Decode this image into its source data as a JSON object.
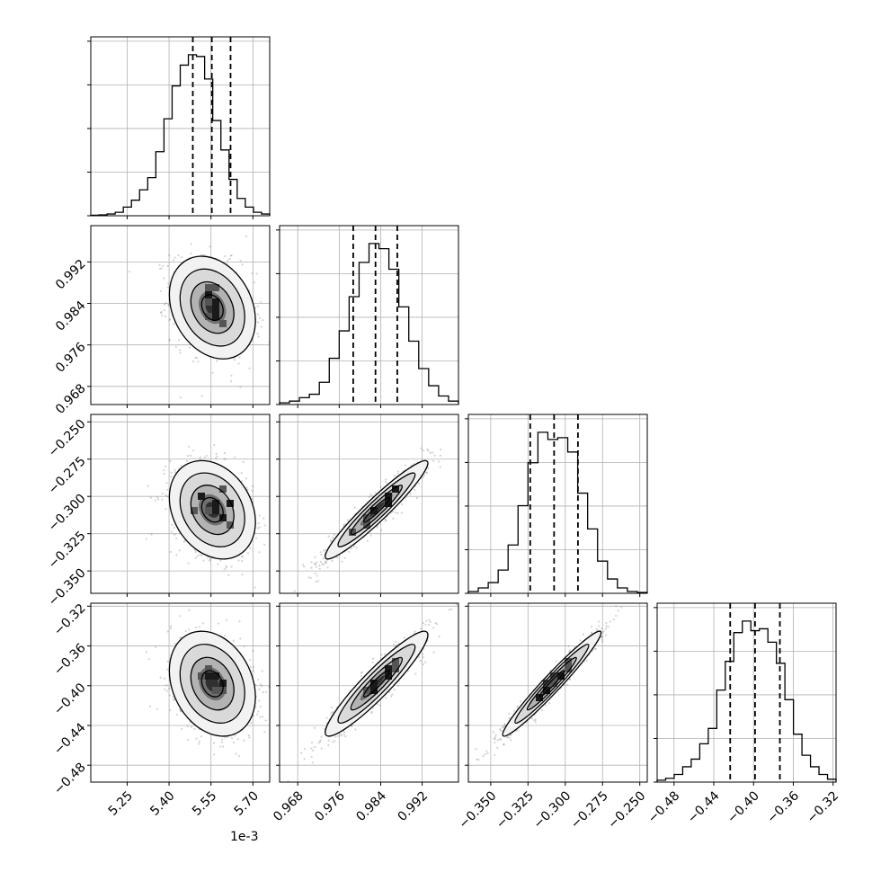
{
  "chart_data": {
    "type": "corner",
    "offset_text": "1e-3",
    "params": [
      {
        "id": "p0",
        "scale": 0.001,
        "range": [
          5.12,
          5.76
        ],
        "ticks": [
          5.25,
          5.4,
          5.55,
          5.7
        ],
        "tick_labels": [
          "5.25",
          "5.40",
          "5.55",
          "5.70"
        ],
        "quantiles": [
          5.485,
          5.553,
          5.62
        ]
      },
      {
        "id": "p1",
        "scale": 1,
        "range": [
          0.9645,
          0.999
        ],
        "ticks": [
          0.968,
          0.976,
          0.984,
          0.992
        ],
        "tick_labels": [
          "0.968",
          "0.976",
          "0.984",
          "0.992"
        ],
        "quantiles": [
          0.9787,
          0.983,
          0.9872
        ]
      },
      {
        "id": "p2",
        "scale": 1,
        "range": [
          -0.365,
          -0.245
        ],
        "ticks": [
          -0.35,
          -0.325,
          -0.3,
          -0.275,
          -0.25
        ],
        "tick_labels": [
          "−0.350",
          "−0.325",
          "−0.300",
          "−0.275",
          "−0.250"
        ],
        "quantiles": [
          -0.3235,
          -0.3075,
          -0.2915
        ]
      },
      {
        "id": "p3",
        "scale": 1,
        "range": [
          -0.497,
          -0.317
        ],
        "ticks": [
          -0.48,
          -0.44,
          -0.4,
          -0.36,
          -0.32
        ],
        "tick_labels": [
          "−0.48",
          "−0.44",
          "−0.40",
          "−0.36",
          "−0.32"
        ],
        "quantiles": [
          -0.4235,
          -0.3985,
          -0.3735
        ]
      }
    ],
    "histograms": [
      {
        "param": 0,
        "counts": [
          0.3,
          0.5,
          1,
          2,
          5,
          9,
          15,
          22,
          37,
          56,
          75,
          87,
          93,
          92,
          79,
          55,
          38,
          21,
          10,
          5,
          2,
          1
        ]
      },
      {
        "param": 1,
        "counts": [
          1,
          2,
          4,
          6,
          13,
          27,
          43,
          63,
          83,
          94,
          91,
          79,
          57,
          37,
          21,
          11,
          5,
          2
        ]
      },
      {
        "param": 2,
        "counts": [
          1,
          3,
          6,
          13,
          27,
          49,
          73,
          90,
          86,
          87,
          79,
          56,
          36,
          18,
          8,
          3,
          1,
          0.5
        ]
      },
      {
        "param": 3,
        "counts": [
          1,
          2,
          4,
          8,
          12,
          20,
          28,
          48,
          63,
          78,
          84,
          79,
          80,
          73,
          62,
          43,
          25,
          14,
          8,
          4,
          1.5
        ]
      }
    ],
    "pairs": [
      {
        "x": 0,
        "y": 1,
        "center": [
          5.555,
          0.9832
        ],
        "sd": [
          0.07,
          0.0045
        ],
        "corr": -0.25
      },
      {
        "x": 0,
        "y": 2,
        "center": [
          5.555,
          -0.309
        ],
        "sd": [
          0.07,
          0.015
        ],
        "corr": -0.25
      },
      {
        "x": 0,
        "y": 3,
        "center": [
          5.555,
          -0.398
        ],
        "sd": [
          0.07,
          0.024
        ],
        "corr": -0.25
      },
      {
        "x": 1,
        "y": 2,
        "center": [
          0.9832,
          -0.309
        ],
        "sd": [
          0.0045,
          0.015
        ],
        "corr": 0.95
      },
      {
        "x": 1,
        "y": 3,
        "center": [
          0.9832,
          -0.398
        ],
        "sd": [
          0.0045,
          0.024
        ],
        "corr": 0.93
      },
      {
        "x": 2,
        "y": 3,
        "center": [
          -0.309,
          -0.398
        ],
        "sd": [
          0.015,
          0.024
        ],
        "corr": 0.97
      }
    ],
    "contour_levels_sigma": [
      0.5,
      1.0,
      1.5,
      2.0
    ],
    "grid": true,
    "quantile_line_style": "dashed"
  }
}
